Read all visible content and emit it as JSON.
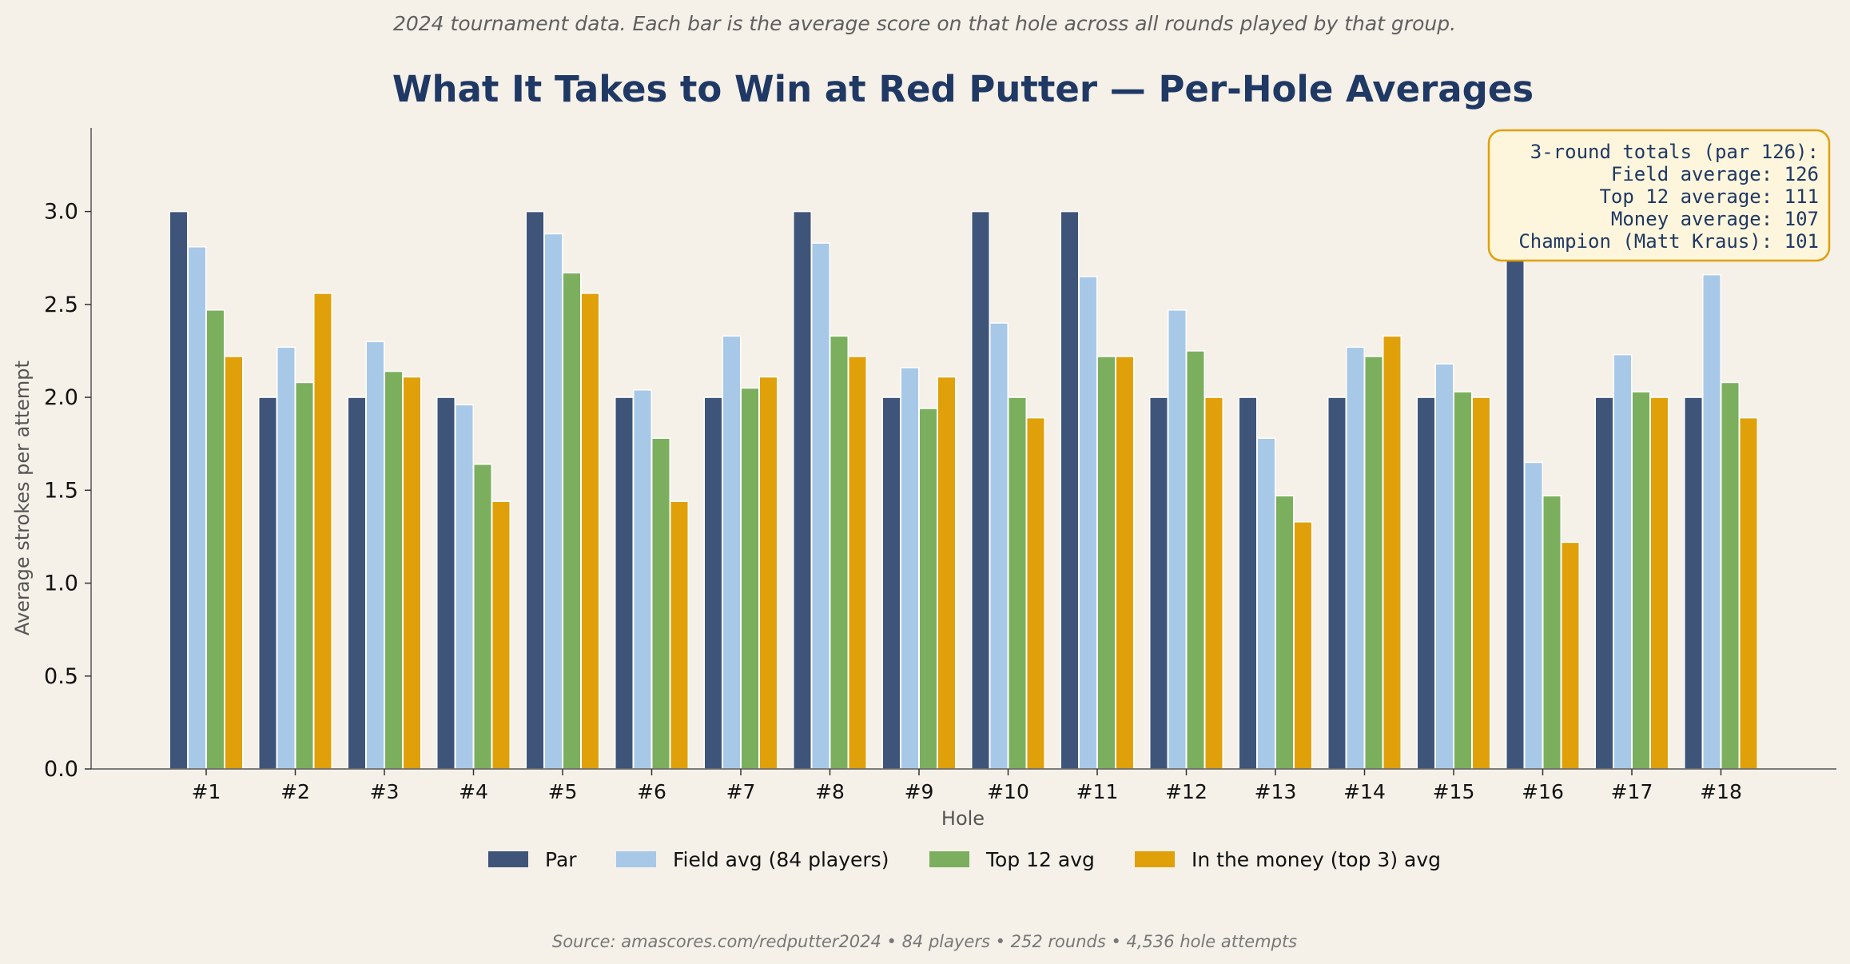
{
  "chart_data": {
    "type": "bar",
    "subtitle": "2024 tournament data. Each bar is the average score on that hole across all rounds played by that group.",
    "title": "What It Takes to Win at Red Putter — Per-Hole Averages",
    "xlabel": "Hole",
    "ylabel": "Average strokes per attempt",
    "ylim": [
      0,
      3.45
    ],
    "yticks": [
      "0.0",
      "0.5",
      "1.0",
      "1.5",
      "2.0",
      "2.5",
      "3.0"
    ],
    "categories": [
      "#1",
      "#2",
      "#3",
      "#4",
      "#5",
      "#6",
      "#7",
      "#8",
      "#9",
      "#10",
      "#11",
      "#12",
      "#13",
      "#14",
      "#15",
      "#16",
      "#17",
      "#18"
    ],
    "series": [
      {
        "name": "Par",
        "color": "#3f5479",
        "values": [
          3,
          2,
          2,
          2,
          3,
          2,
          2,
          3,
          2,
          3,
          3,
          2,
          2,
          2,
          2,
          3,
          2,
          2
        ]
      },
      {
        "name": "Field avg (84 players)",
        "color": "#a8c8e8",
        "values": [
          2.81,
          2.27,
          2.3,
          1.96,
          2.88,
          2.04,
          2.33,
          2.83,
          2.16,
          2.4,
          2.65,
          2.47,
          1.78,
          2.27,
          2.18,
          1.65,
          2.23,
          2.66
        ]
      },
      {
        "name": "Top 12 avg",
        "color": "#7baf5e",
        "values": [
          2.47,
          2.08,
          2.14,
          1.64,
          2.67,
          1.78,
          2.05,
          2.33,
          1.94,
          2.0,
          2.22,
          2.25,
          1.47,
          2.22,
          2.03,
          1.47,
          2.03,
          2.08
        ]
      },
      {
        "name": "In the money (top 3) avg",
        "color": "#e0a00a",
        "values": [
          2.22,
          2.56,
          2.11,
          1.44,
          2.56,
          1.44,
          2.11,
          2.22,
          2.11,
          1.89,
          2.22,
          2.0,
          1.33,
          2.33,
          2.0,
          1.22,
          2.0,
          1.89
        ]
      }
    ],
    "legend_position": "bottom",
    "grid": false,
    "annotation": {
      "lines": [
        "3-round totals (par 126):",
        "Field average: 126",
        "Top 12 average: 111",
        "Money average: 107",
        "Champion (Matt Kraus): 101"
      ],
      "position": "top-right"
    },
    "source": "Source: amascores.com/redputter2024  •  84 players  •  252 rounds  •  4,536 hole attempts"
  }
}
